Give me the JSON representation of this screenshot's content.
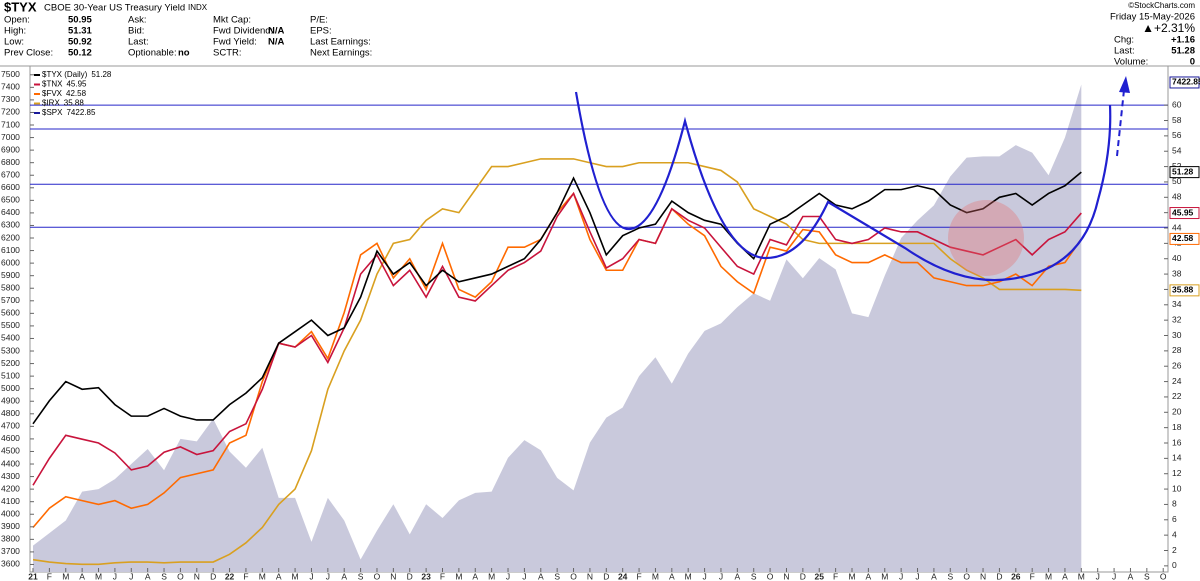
{
  "header": {
    "symbol": "$TYX",
    "name": "CBOE 30-Year US Treasury Yield",
    "exchange": "INDX",
    "fields": [
      [
        {
          "label": "Open:",
          "value": 50.95
        },
        {
          "label": "High:",
          "value": 51.31
        },
        {
          "label": "Low:",
          "value": 50.92
        },
        {
          "label": "Prev Close:",
          "value": 50.12
        }
      ],
      [
        {
          "label": "Ask:"
        },
        {
          "label": "Bid:"
        },
        {
          "label": "Last:"
        },
        {
          "label": "Optionable:",
          "value": "no"
        }
      ],
      [
        {
          "label": "Mkt Cap:"
        },
        {
          "label": "Fwd Dividend:",
          "value": "N/A"
        },
        {
          "label": "Fwd Yield:",
          "value": "N/A"
        },
        {
          "label": "SCTR:"
        }
      ],
      [
        {
          "label": "P/E:"
        },
        {
          "label": "EPS:"
        },
        {
          "label": "Last Earnings:"
        },
        {
          "label": "Next Earnings:"
        }
      ]
    ],
    "date": "Friday  15-May-2026",
    "change_pct": "▲+2.31%",
    "summary": [
      {
        "label": "Chg:",
        "value": "+1.16"
      },
      {
        "label": "Last:",
        "value": 51.28
      },
      {
        "label": "Volume:",
        "value": 0
      }
    ],
    "credit": "©StockCharts.com"
  },
  "chart_data": {
    "type": "line",
    "categories": [
      "21",
      "F",
      "M",
      "A",
      "M",
      "J",
      "J",
      "A",
      "S",
      "O",
      "N",
      "D",
      "22",
      "F",
      "M",
      "A",
      "M",
      "J",
      "J",
      "A",
      "S",
      "O",
      "N",
      "D",
      "23",
      "F",
      "M",
      "A",
      "M",
      "J",
      "J",
      "A",
      "S",
      "O",
      "N",
      "D",
      "24",
      "F",
      "M",
      "A",
      "M",
      "J",
      "J",
      "A",
      "S",
      "O",
      "N",
      "D",
      "25",
      "F",
      "M",
      "A",
      "M",
      "J",
      "J",
      "A",
      "S",
      "O",
      "N",
      "D",
      "26",
      "F",
      "M",
      "A",
      "M",
      "J",
      "J",
      "A",
      "S",
      "O"
    ],
    "ylim": [
      3540,
      7570
    ],
    "yticks": [
      3600,
      3700,
      3800,
      3900,
      4000,
      4100,
      4200,
      4300,
      4400,
      4500,
      4600,
      4700,
      4800,
      4900,
      5000,
      5100,
      5200,
      5300,
      5400,
      5500,
      5600,
      5700,
      5800,
      5900,
      6000,
      6100,
      6200,
      6300,
      6400,
      6500,
      6600,
      6700,
      6800,
      6900,
      7000,
      7100,
      7200,
      7300,
      7400,
      7500
    ],
    "y2lim": [
      -0.8,
      65.1
    ],
    "y2ticks": [
      0,
      2,
      4,
      6,
      8,
      10,
      12,
      14,
      16,
      18,
      20,
      22,
      24,
      26,
      28,
      30,
      32,
      34,
      36,
      38,
      40,
      42,
      44,
      46,
      48,
      50,
      52,
      54,
      56,
      58,
      60
    ],
    "reference_lines": {
      "axis": "y2",
      "color": "#2626c9",
      "values": [
        60,
        56.9,
        49.7,
        44.1
      ]
    },
    "series": [
      {
        "name": "$SPX",
        "color": "#c9c9dc",
        "legend_color": "#1a1a9a",
        "axis": "y",
        "kind": "area",
        "values": [
          3750,
          3850,
          3950,
          4180,
          4200,
          4280,
          4400,
          4520,
          4350,
          4600,
          4580,
          4760,
          4500,
          4370,
          4530,
          4130,
          4130,
          3780,
          4130,
          3950,
          3640,
          3870,
          4080,
          3840,
          4080,
          3970,
          4110,
          4170,
          4180,
          4450,
          4590,
          4510,
          4290,
          4190,
          4570,
          4770,
          4850,
          5100,
          5250,
          5040,
          5280,
          5460,
          5520,
          5650,
          5760,
          5700,
          6030,
          5880,
          6040,
          5950,
          5600,
          5570,
          5900,
          6200,
          6340,
          6460,
          6690,
          6840,
          6850,
          6850,
          6940,
          6880,
          6700,
          7000,
          7422.85,
          null,
          null,
          null,
          null,
          null
        ]
      },
      {
        "name": "$IRX",
        "color": "#d9a020",
        "axis": "y2",
        "values": [
          0.8,
          0.5,
          0.3,
          0.2,
          0.2,
          0.4,
          0.5,
          0.5,
          0.4,
          0.5,
          0.5,
          0.5,
          1.5,
          3,
          5,
          8,
          10,
          15,
          23,
          28,
          32,
          38,
          42,
          42.5,
          45,
          46.5,
          46,
          49,
          52,
          52,
          52.5,
          53,
          53,
          53,
          52.5,
          52,
          52,
          52.5,
          52.5,
          52.5,
          52.5,
          52,
          51.5,
          50,
          46.5,
          45.5,
          44.5,
          42.5,
          42,
          42,
          42,
          42,
          42,
          42,
          42,
          42,
          40,
          38.5,
          37.5,
          36,
          36,
          36,
          36,
          36,
          35.88,
          null,
          null,
          null,
          null,
          null
        ]
      },
      {
        "name": "$FVX",
        "color": "#ff6a00",
        "axis": "y2",
        "values": [
          5,
          7.5,
          9,
          8.5,
          8,
          8.5,
          7.5,
          8,
          9.5,
          11.5,
          12,
          12.5,
          16,
          17,
          24,
          29,
          28.5,
          30.5,
          27,
          33,
          40.5,
          42,
          37.5,
          40,
          36,
          42,
          36,
          35,
          37,
          41.5,
          41.5,
          42.5,
          46,
          48.5,
          42.5,
          38.5,
          38.5,
          42.5,
          42,
          46.5,
          44.5,
          43,
          39,
          37,
          35.5,
          41.5,
          41,
          43.8,
          43.5,
          40.5,
          39.5,
          39.5,
          40.5,
          39.5,
          39.5,
          37.5,
          37,
          36.5,
          36.5,
          37,
          38,
          36.5,
          39,
          39.5,
          42.58,
          null,
          null,
          null,
          null,
          null
        ]
      },
      {
        "name": "$TNX",
        "color": "#c8143c",
        "axis": "y2",
        "values": [
          10.5,
          14,
          17,
          16.5,
          16,
          14.7,
          12.5,
          13,
          14.8,
          15.5,
          14.5,
          15,
          17.5,
          18.5,
          23,
          29,
          28.5,
          30,
          26.5,
          31,
          38,
          40.5,
          36.5,
          38.5,
          35,
          39,
          35,
          34.5,
          36.5,
          38.5,
          39.5,
          41,
          45.5,
          48.5,
          43.5,
          38.8,
          40,
          42.5,
          42,
          46.5,
          45,
          44,
          41.5,
          39,
          38,
          42.5,
          41.8,
          45.5,
          45.5,
          42.5,
          42,
          42.5,
          44,
          43.5,
          43.5,
          42.5,
          41.5,
          41,
          40.5,
          41.5,
          42.5,
          40.5,
          42.5,
          43.5,
          45.95,
          null,
          null,
          null,
          null,
          null
        ]
      },
      {
        "name": "$TYX (Daily)",
        "color": "#000000",
        "axis": "y2",
        "values": [
          18.5,
          21.5,
          24,
          23,
          23.2,
          21,
          19.5,
          19.5,
          20.5,
          19.5,
          19,
          19,
          21,
          22.5,
          24.5,
          29,
          30.5,
          32,
          30,
          31,
          35,
          41,
          38,
          39.5,
          36.5,
          38.5,
          37,
          37.5,
          38,
          39,
          40,
          42.5,
          46,
          50.5,
          46,
          40.5,
          43,
          44,
          44.5,
          47.5,
          46,
          45,
          44.5,
          42,
          40,
          44.5,
          45.5,
          47,
          48.5,
          47,
          46.5,
          47.5,
          49,
          49,
          49.5,
          49,
          47,
          46,
          46.5,
          48,
          48.5,
          47,
          48.5,
          49.5,
          51.28,
          null,
          null,
          null,
          null,
          null
        ]
      }
    ]
  }
}
